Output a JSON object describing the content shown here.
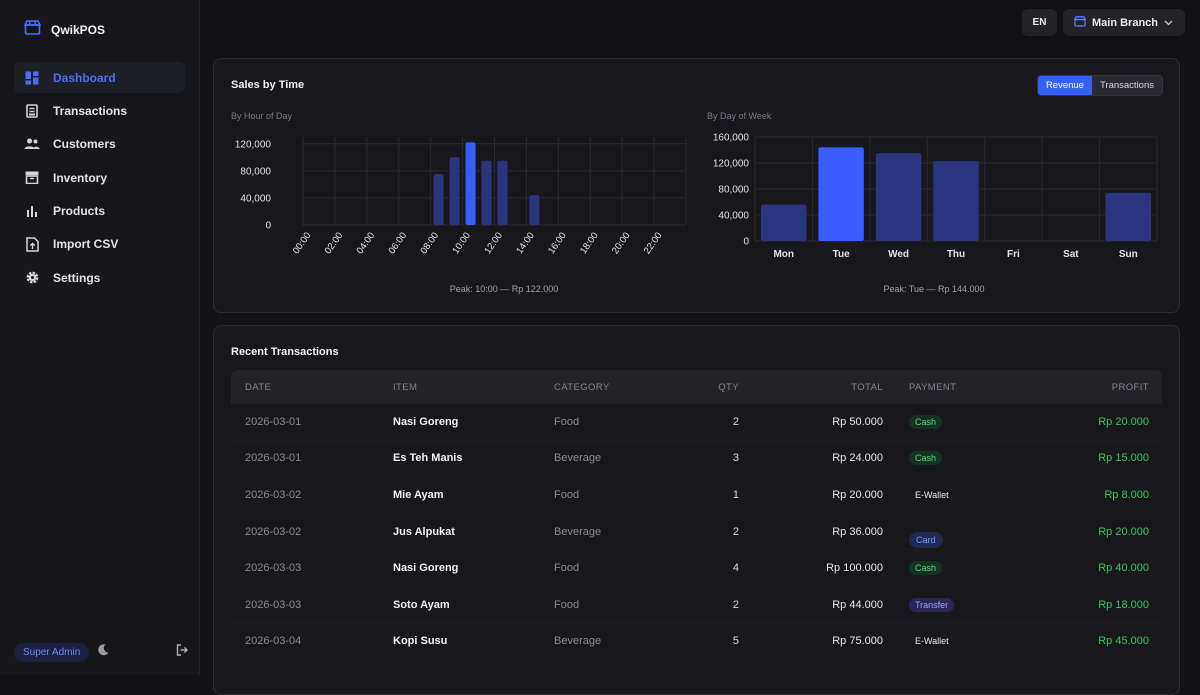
{
  "app": {
    "name": "QwikPOS"
  },
  "sidebar": {
    "items": [
      {
        "label": "Dashboard",
        "icon": "dashboard-icon",
        "active": true
      },
      {
        "label": "Transactions",
        "icon": "receipt-icon"
      },
      {
        "label": "Customers",
        "icon": "users-icon"
      },
      {
        "label": "Inventory",
        "icon": "archive-icon"
      },
      {
        "label": "Products",
        "icon": "bar-chart-icon"
      },
      {
        "label": "Import CSV",
        "icon": "file-upload-icon"
      },
      {
        "label": "Settings",
        "icon": "gear-icon"
      }
    ],
    "role": "Super Admin"
  },
  "header": {
    "lang": "EN",
    "branch": "Main Branch"
  },
  "sales": {
    "title": "Sales by Time",
    "toggle": {
      "revenue": "Revenue",
      "transactions": "Transactions"
    },
    "hour": {
      "subtitle": "By Hour of Day",
      "peak": "Peak: 10:00 — Rp 122.000"
    },
    "day": {
      "subtitle": "By Day of Week",
      "peak": "Peak: Tue — Rp 144.000"
    }
  },
  "chart_data": [
    {
      "type": "bar",
      "title": "By Hour of Day",
      "categories": [
        "00:00",
        "01:00",
        "02:00",
        "03:00",
        "04:00",
        "05:00",
        "06:00",
        "07:00",
        "08:00",
        "09:00",
        "10:00",
        "11:00",
        "12:00",
        "13:00",
        "14:00",
        "15:00",
        "16:00",
        "17:00",
        "18:00",
        "19:00",
        "20:00",
        "21:00",
        "22:00",
        "23:00"
      ],
      "tick_labels": [
        "00:00",
        "02:00",
        "04:00",
        "06:00",
        "08:00",
        "10:00",
        "12:00",
        "14:00",
        "16:00",
        "18:00",
        "20:00",
        "22:00"
      ],
      "values": [
        0,
        0,
        0,
        0,
        0,
        0,
        0,
        0,
        75000,
        100000,
        122000,
        95000,
        95000,
        0,
        44000,
        0,
        0,
        0,
        0,
        0,
        0,
        0,
        0,
        0
      ],
      "ylim": [
        0,
        130000
      ],
      "yticks": [
        "0",
        "40,000",
        "80,000",
        "120,000"
      ],
      "highlight": "10:00",
      "colors": {
        "bar": "#2a3580",
        "highlight": "#3b5cff"
      }
    },
    {
      "type": "bar",
      "title": "By Day of Week",
      "categories": [
        "Mon",
        "Tue",
        "Wed",
        "Thu",
        "Fri",
        "Sat",
        "Sun"
      ],
      "values": [
        56000,
        144000,
        135000,
        123000,
        0,
        0,
        74000
      ],
      "ylim": [
        0,
        160000
      ],
      "yticks": [
        "0",
        "40,000",
        "80,000",
        "120,000",
        "160,000"
      ],
      "highlight": "Tue",
      "colors": {
        "bar": "#2a3580",
        "highlight": "#3b5cff"
      }
    }
  ],
  "recent": {
    "title": "Recent Transactions",
    "columns": [
      "DATE",
      "ITEM",
      "CATEGORY",
      "QTY",
      "TOTAL",
      "PAYMENT",
      "PROFIT"
    ],
    "rows": [
      {
        "date": "2026-03-01",
        "item": "Nasi Goreng",
        "category": "Food",
        "qty": "2",
        "total": "Rp 50.000",
        "payment": "Cash",
        "profit": "Rp 20.000"
      },
      {
        "date": "2026-03-01",
        "item": "Es Teh Manis",
        "category": "Beverage",
        "qty": "3",
        "total": "Rp 24.000",
        "payment": "Cash",
        "profit": "Rp 15.000"
      },
      {
        "date": "2026-03-02",
        "item": "Mie Ayam",
        "category": "Food",
        "qty": "1",
        "total": "Rp 20.000",
        "payment": "E-Wallet",
        "profit": "Rp 8.000"
      },
      {
        "date": "2026-03-02",
        "item": "Jus Alpukat",
        "category": "Beverage",
        "qty": "2",
        "total": "Rp 36.000",
        "payment": "Card",
        "profit": "Rp 20.000"
      },
      {
        "date": "2026-03-03",
        "item": "Nasi Goreng",
        "category": "Food",
        "qty": "4",
        "total": "Rp 100.000",
        "payment": "Cash",
        "profit": "Rp 40.000"
      },
      {
        "date": "2026-03-03",
        "item": "Soto Ayam",
        "category": "Food",
        "qty": "2",
        "total": "Rp 44.000",
        "payment": "Transfer",
        "profit": "Rp 18.000"
      },
      {
        "date": "2026-03-04",
        "item": "Kopi Susu",
        "category": "Beverage",
        "qty": "5",
        "total": "Rp 75.000",
        "payment": "E-Wallet",
        "profit": "Rp 45.000"
      }
    ]
  }
}
